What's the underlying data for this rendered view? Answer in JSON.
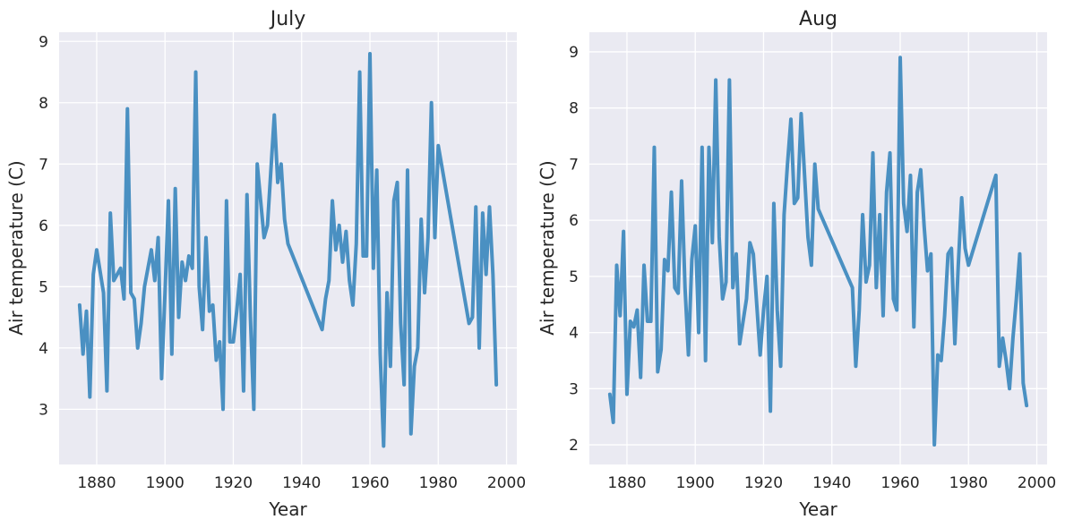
{
  "chart_data": [
    {
      "type": "line",
      "title": "July",
      "xlabel": "Year",
      "ylabel": "Air temperature (C)",
      "xlim": [
        1869,
        2003
      ],
      "ylim": [
        2.1,
        9.15
      ],
      "xticks": [
        1880,
        1900,
        1920,
        1940,
        1960,
        1980,
        2000
      ],
      "yticks": [
        3,
        4,
        5,
        6,
        7,
        8,
        9
      ],
      "grid": true,
      "color": "#4a90c2",
      "series": [
        {
          "x": [
            1875,
            1876,
            1877,
            1878,
            1879,
            1880,
            1882,
            1883,
            1884,
            1885,
            1886,
            1887,
            1888,
            1889,
            1890,
            1891,
            1892,
            1893,
            1894,
            1895,
            1896,
            1897,
            1898,
            1899,
            1900,
            1901,
            1902,
            1903,
            1904,
            1905,
            1906,
            1907,
            1908,
            1909,
            1910,
            1911,
            1912,
            1913,
            1914,
            1915,
            1916,
            1917,
            1918,
            1919,
            1920,
            1921,
            1922,
            1923,
            1924,
            1925,
            1926,
            1927,
            1928,
            1929,
            1930,
            1931,
            1932,
            1933,
            1934,
            1935,
            1936,
            1946,
            1947,
            1948,
            1949,
            1950,
            1951,
            1952,
            1953,
            1954,
            1955,
            1956,
            1957,
            1958,
            1959,
            1960,
            1961,
            1962,
            1963,
            1964,
            1965,
            1966,
            1967,
            1968,
            1969,
            1970,
            1971,
            1972,
            1973,
            1974,
            1975,
            1976,
            1977,
            1978,
            1979,
            1980,
            1989,
            1990,
            1991,
            1992,
            1993,
            1994,
            1995,
            1996,
            1997
          ],
          "y": [
            4.7,
            3.9,
            4.6,
            3.2,
            5.2,
            5.6,
            4.9,
            3.3,
            6.2,
            5.1,
            5.2,
            5.3,
            4.8,
            7.9,
            4.9,
            4.8,
            4.0,
            4.4,
            5.0,
            5.3,
            5.6,
            5.1,
            5.8,
            3.5,
            4.9,
            6.4,
            3.9,
            6.6,
            4.5,
            5.4,
            5.1,
            5.5,
            5.3,
            8.5,
            5.0,
            4.3,
            5.8,
            4.6,
            4.7,
            3.8,
            4.1,
            3.0,
            6.4,
            4.1,
            4.1,
            4.6,
            5.2,
            3.3,
            6.5,
            4.5,
            3.0,
            7.0,
            6.4,
            5.8,
            6.0,
            6.9,
            7.8,
            6.7,
            7.0,
            6.1,
            5.7,
            4.3,
            4.8,
            5.1,
            6.4,
            5.6,
            6.0,
            5.4,
            5.9,
            5.1,
            4.7,
            5.7,
            8.5,
            5.5,
            5.5,
            8.8,
            5.3,
            6.9,
            3.9,
            2.4,
            4.9,
            3.7,
            6.4,
            6.7,
            4.4,
            3.4,
            6.9,
            2.6,
            3.7,
            4.0,
            6.1,
            4.9,
            5.8,
            8.0,
            5.8,
            7.3,
            4.4,
            4.5,
            6.3,
            4.0,
            6.2,
            5.2,
            6.3,
            5.2,
            3.4
          ]
        }
      ]
    },
    {
      "type": "line",
      "title": "Aug",
      "xlabel": "Year",
      "ylabel": "Air temperature (C)",
      "xlim": [
        1869,
        2003
      ],
      "ylim": [
        1.65,
        9.35
      ],
      "xticks": [
        1880,
        1900,
        1920,
        1940,
        1960,
        1980,
        2000
      ],
      "yticks": [
        2,
        3,
        4,
        5,
        6,
        7,
        8,
        9
      ],
      "grid": true,
      "color": "#4a90c2",
      "series": [
        {
          "x": [
            1875,
            1876,
            1877,
            1878,
            1879,
            1880,
            1881,
            1882,
            1883,
            1884,
            1885,
            1886,
            1887,
            1888,
            1889,
            1890,
            1891,
            1892,
            1893,
            1894,
            1895,
            1896,
            1897,
            1898,
            1899,
            1900,
            1901,
            1902,
            1903,
            1904,
            1905,
            1906,
            1907,
            1908,
            1909,
            1910,
            1911,
            1912,
            1913,
            1915,
            1916,
            1917,
            1918,
            1919,
            1920,
            1921,
            1922,
            1923,
            1924,
            1925,
            1926,
            1927,
            1928,
            1929,
            1930,
            1931,
            1932,
            1933,
            1934,
            1935,
            1936,
            1946,
            1947,
            1948,
            1949,
            1950,
            1951,
            1952,
            1953,
            1954,
            1955,
            1956,
            1957,
            1958,
            1959,
            1960,
            1961,
            1962,
            1963,
            1964,
            1965,
            1966,
            1967,
            1968,
            1969,
            1970,
            1971,
            1972,
            1973,
            1974,
            1975,
            1976,
            1977,
            1978,
            1979,
            1980,
            1988,
            1989,
            1990,
            1991,
            1992,
            1993,
            1994,
            1995,
            1996,
            1997
          ],
          "y": [
            2.9,
            2.4,
            5.2,
            4.3,
            5.8,
            2.9,
            4.2,
            4.1,
            4.4,
            3.2,
            5.2,
            4.2,
            4.2,
            7.3,
            3.3,
            3.7,
            5.3,
            5.1,
            6.5,
            4.8,
            4.7,
            6.7,
            4.8,
            3.6,
            5.3,
            5.9,
            4.0,
            7.3,
            3.5,
            7.3,
            5.6,
            8.5,
            5.7,
            4.6,
            4.9,
            8.5,
            4.8,
            5.4,
            3.8,
            4.6,
            5.6,
            5.4,
            4.5,
            3.6,
            4.4,
            5.0,
            2.6,
            6.3,
            4.4,
            3.4,
            6.1,
            7.0,
            7.8,
            6.3,
            6.4,
            7.9,
            6.8,
            5.7,
            5.2,
            7.0,
            6.2,
            4.8,
            3.4,
            4.4,
            6.1,
            4.9,
            5.2,
            7.2,
            4.8,
            6.1,
            4.3,
            6.5,
            7.2,
            4.6,
            4.4,
            8.9,
            6.3,
            5.8,
            6.8,
            4.1,
            6.5,
            6.9,
            5.9,
            5.1,
            5.4,
            2.0,
            3.6,
            3.5,
            4.3,
            5.4,
            5.5,
            3.8,
            5.2,
            6.4,
            5.5,
            5.2,
            6.8,
            3.4,
            3.9,
            3.5,
            3.0,
            3.9,
            4.6,
            5.4,
            3.1,
            2.7
          ]
        }
      ]
    }
  ]
}
